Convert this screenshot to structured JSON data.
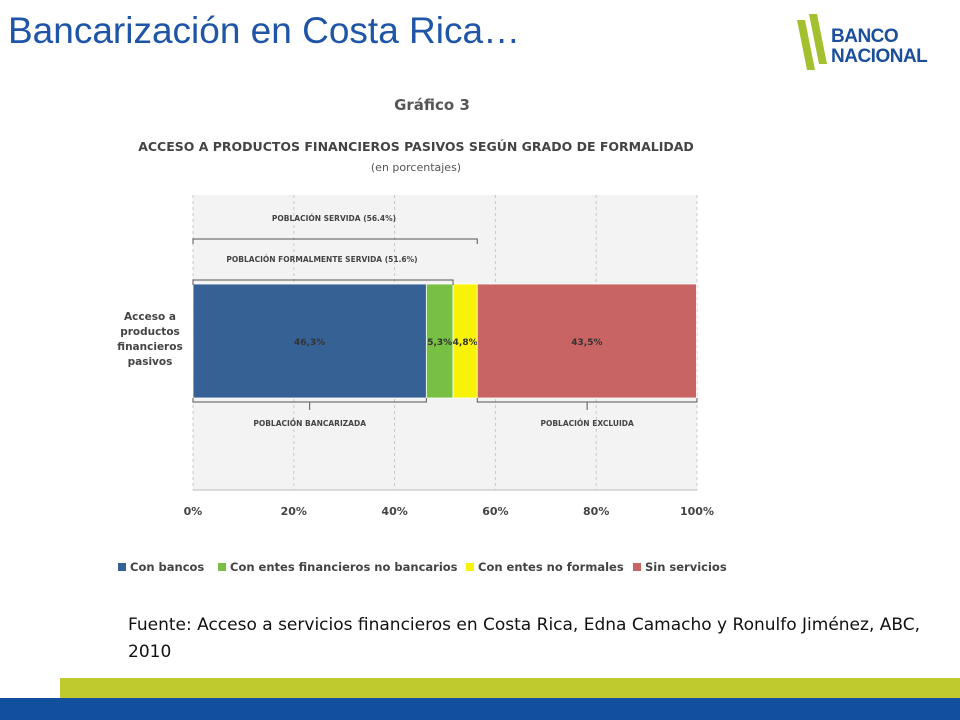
{
  "slide": {
    "title": "Bancarización en Costa Rica…",
    "logo_line1": "BANCO",
    "logo_line2": "NACIONAL",
    "source": "Fuente: Acceso a servicios financieros en Costa Rica, Edna Camacho y Ronulfo Jiménez, ABC, 2010"
  },
  "colors": {
    "title": "#1f55a6",
    "logo_green": "#a3c12f",
    "logo_blue": "#1b4f9c",
    "band_green": "#bfca2e",
    "band_blue": "#12509e"
  },
  "chart_data": {
    "type": "bar",
    "orientation": "horizontal",
    "stacked": true,
    "figure_label": "Gráfico 3",
    "title": "ACCESO A PRODUCTOS FINANCIEROS PASIVOS SEGÚN GRADO DE FORMALIDAD",
    "subtitle": "(en porcentajes)",
    "category_label_lines": [
      "Acceso a",
      "productos",
      "financieros",
      "pasivos"
    ],
    "xlim": [
      0,
      100
    ],
    "x_ticks": [
      0,
      20,
      40,
      60,
      80,
      100
    ],
    "x_tick_labels": [
      "0%",
      "20%",
      "40%",
      "60%",
      "80%",
      "100%"
    ],
    "grid": true,
    "series": [
      {
        "name": "Con bancos",
        "value": 46.3,
        "label": "46,3%",
        "color": "#366195"
      },
      {
        "name": "Con entes financieros no bancarios",
        "value": 5.3,
        "label": "5,3%",
        "color": "#77c043"
      },
      {
        "name": "Con entes no formales",
        "value": 4.8,
        "label": "4,8%",
        "color": "#f8f209"
      },
      {
        "name": "Sin servicios",
        "value": 43.5,
        "label": "43,5%",
        "color": "#c86463"
      }
    ],
    "annotations": [
      {
        "text": "POBLACIÓN SERVIDA (56.4%)",
        "from": 0,
        "to": 56.4,
        "side": "above",
        "level": 2
      },
      {
        "text": "POBLACIÓN FORMALMENTE SERVIDA (51.6%)",
        "from": 0,
        "to": 51.6,
        "side": "above",
        "level": 1
      },
      {
        "text": "POBLACIÓN BANCARIZADA",
        "from": 0,
        "to": 46.3,
        "side": "below"
      },
      {
        "text": "POBLACIÓN EXCLUIDA",
        "from": 56.4,
        "to": 100,
        "side": "below"
      }
    ],
    "legend_position": "bottom"
  }
}
